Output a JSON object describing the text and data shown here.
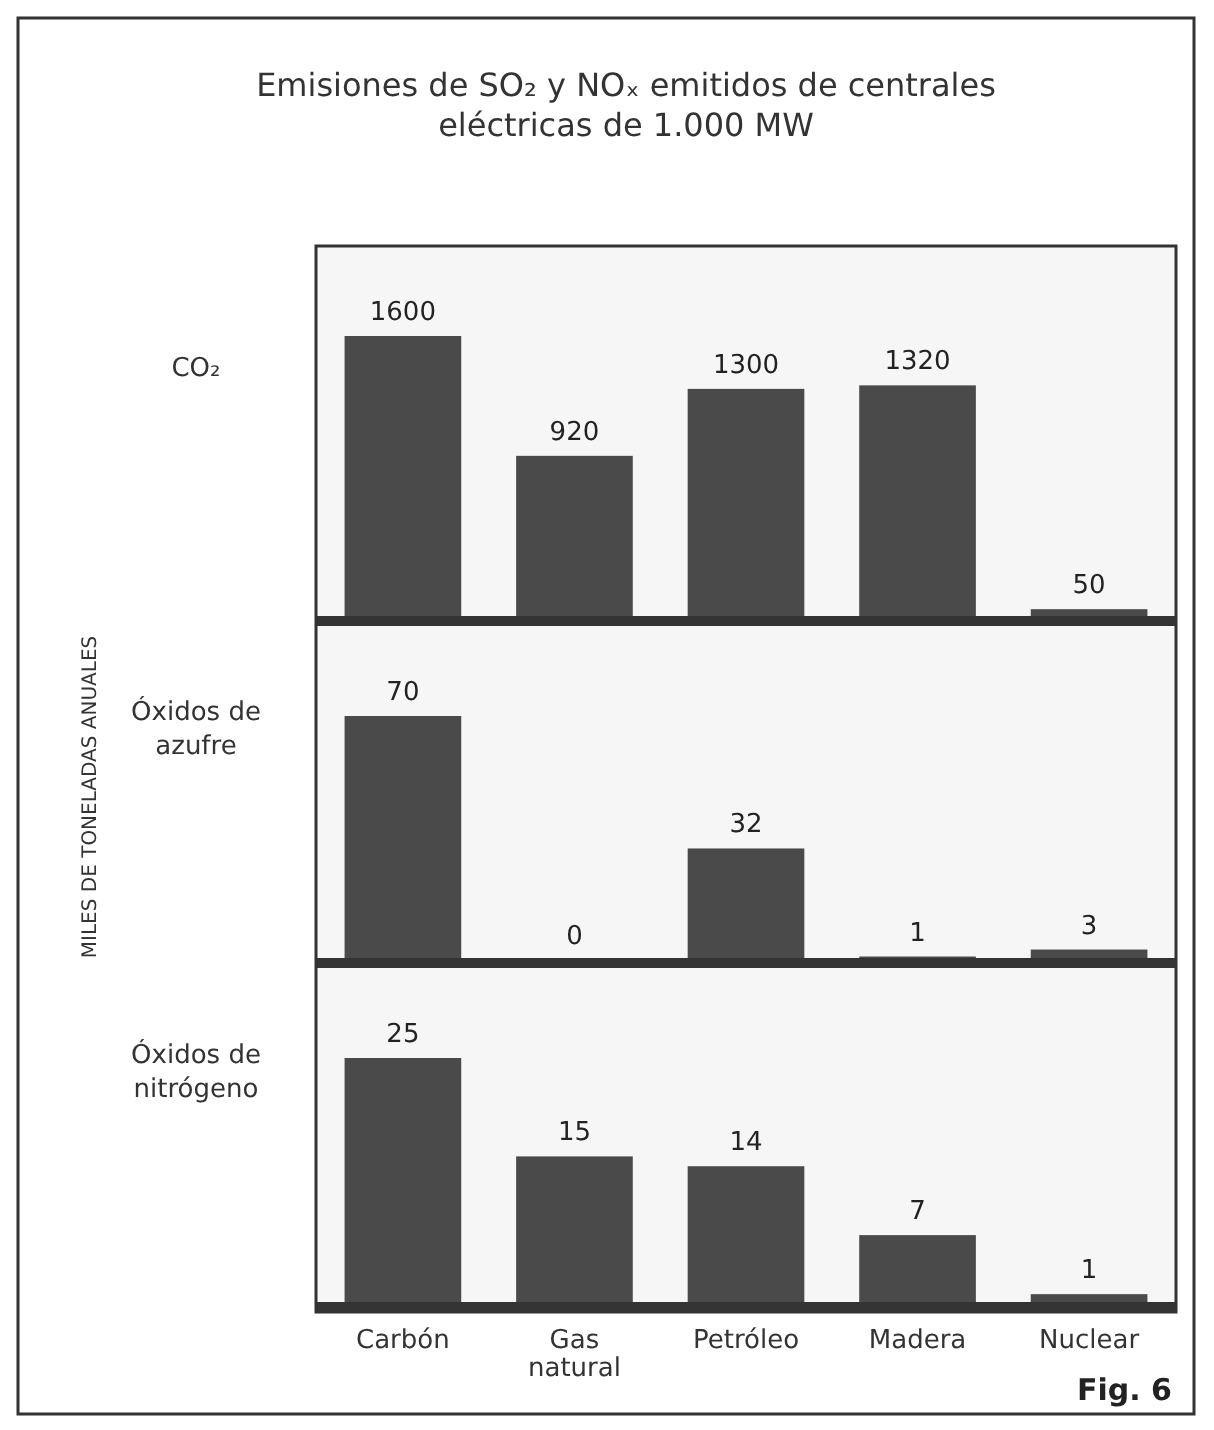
{
  "chart_data": [
    {
      "type": "bar",
      "title": "Emisiones de SO₂ y NOₓ emitidos de centrales eléctricas de 1.000 MW",
      "subtitle": "CO₂",
      "categories": [
        "Carbón",
        "Gas natural",
        "Petróleo",
        "Madera",
        "Nuclear"
      ],
      "values": [
        1600,
        920,
        1300,
        1320,
        50
      ],
      "color": "#4a4a4a",
      "data_labels": true,
      "tick_labels": false
    },
    {
      "type": "bar",
      "subtitle": "Óxidos de azufre",
      "ylabel": "MILES DE TONELADAS ANUALES",
      "categories": [
        "Carbón",
        "Gas natural",
        "Petróleo",
        "Madera",
        "Nuclear"
      ],
      "values": [
        70,
        0,
        32,
        1,
        3
      ],
      "color": "#4a4a4a",
      "data_labels": true,
      "tick_labels": false
    },
    {
      "type": "bar",
      "subtitle": "Óxidos de nitrógeno",
      "categories": [
        "Carbón",
        "Gas natural",
        "Petróleo",
        "Madera",
        "Nuclear"
      ],
      "values": [
        25,
        15,
        14,
        7,
        1
      ],
      "color": "#4a4a4a",
      "data_labels": true,
      "tick_labels": "x",
      "annotations": [
        "Fig. 6"
      ]
    }
  ]
}
